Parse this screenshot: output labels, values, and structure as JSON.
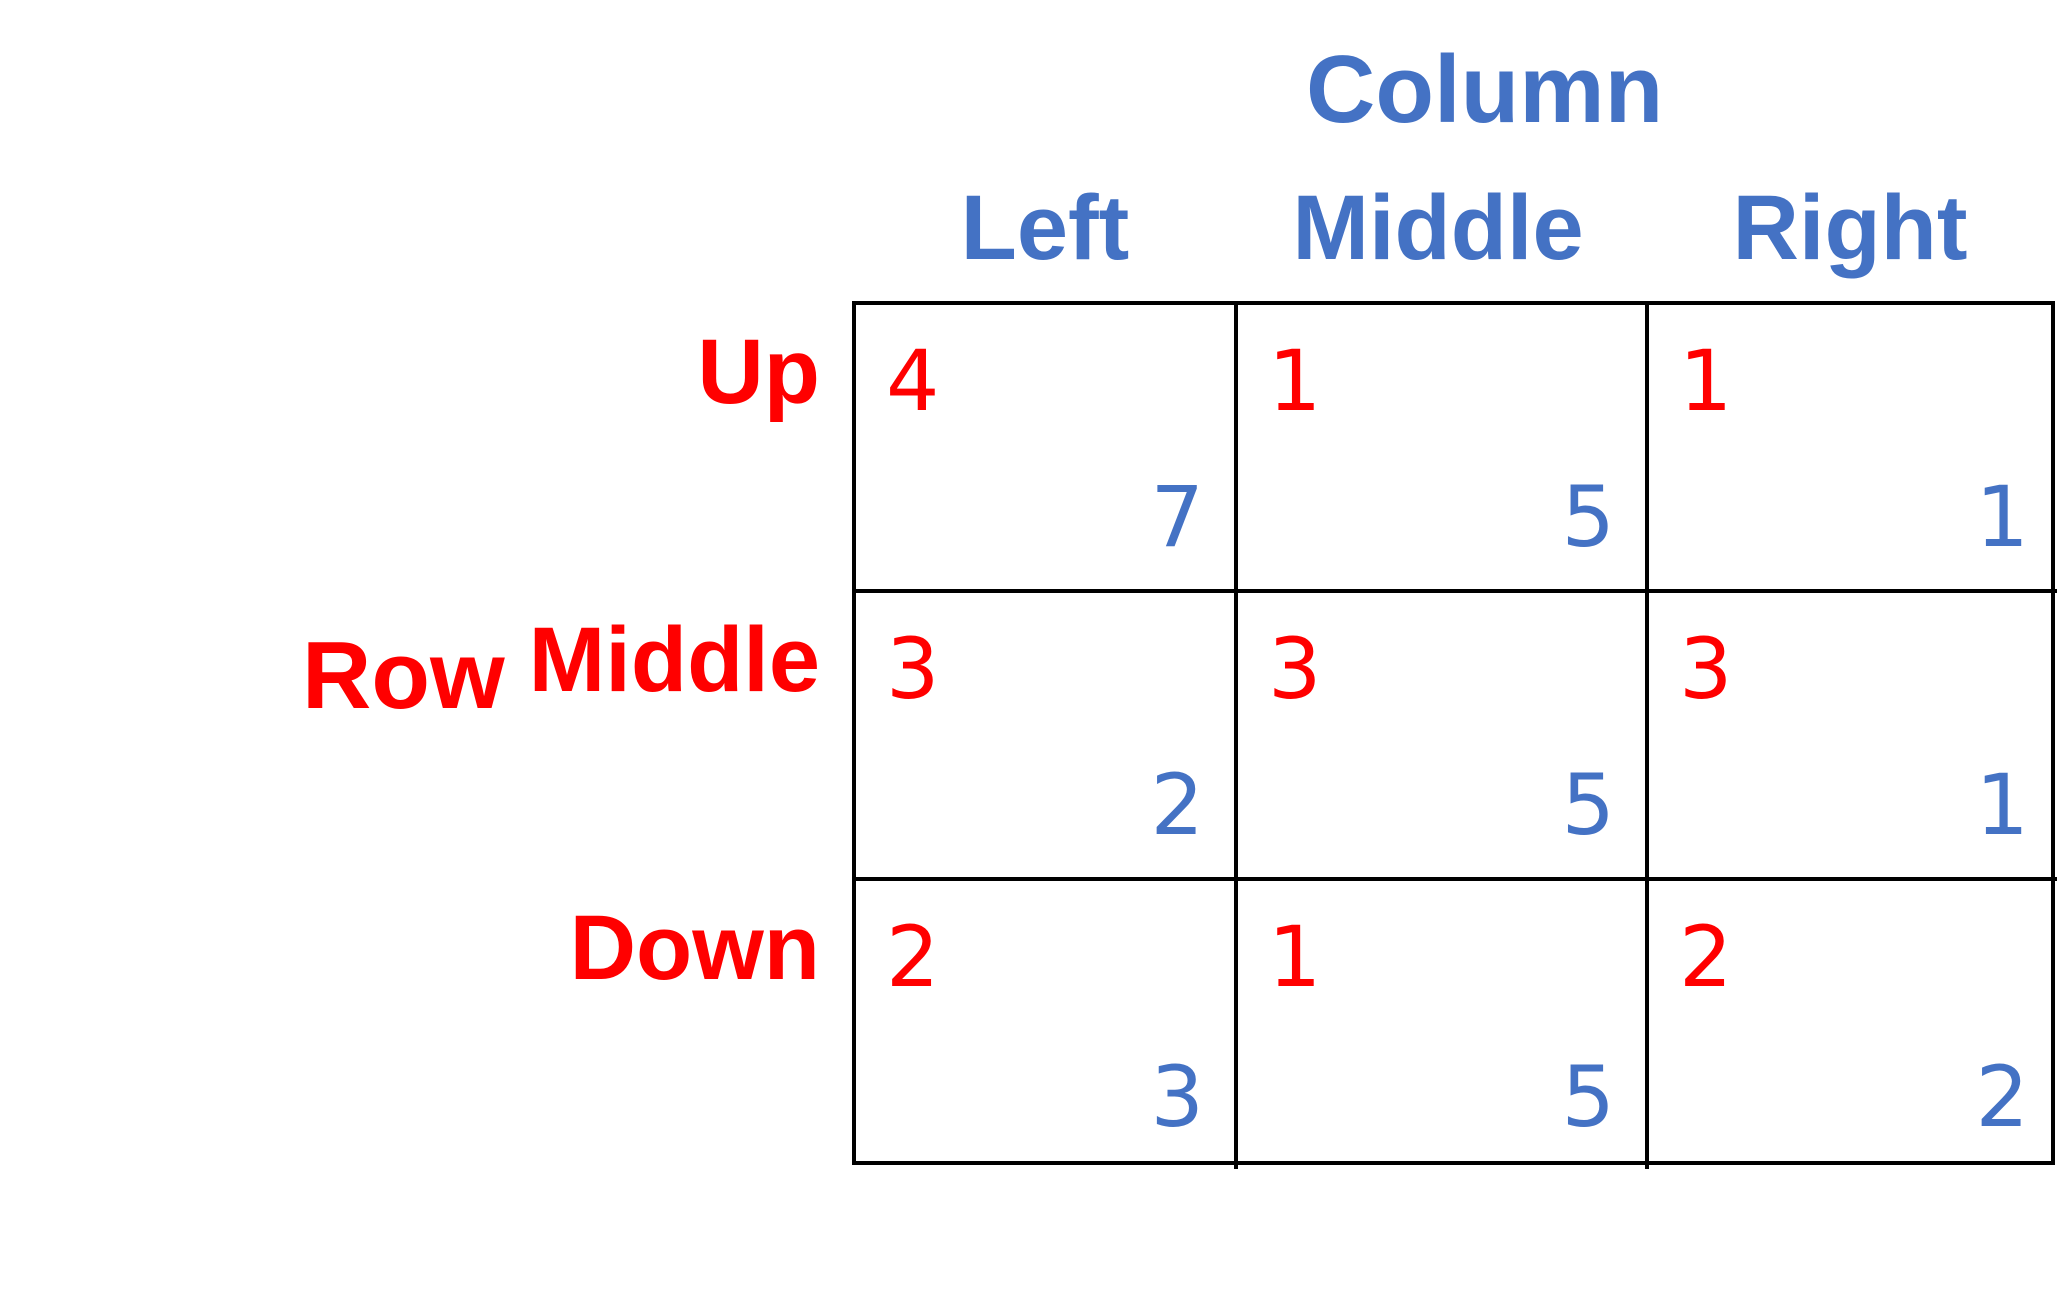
{
  "players": {
    "column": "Column",
    "row": "Row"
  },
  "column_strategies": [
    "Left",
    "Middle",
    "Right"
  ],
  "row_strategies": [
    "Up",
    "Middle",
    "Down"
  ],
  "payoffs": [
    [
      {
        "row": "4",
        "col": "7"
      },
      {
        "row": "1",
        "col": "5"
      },
      {
        "row": "1",
        "col": "1"
      }
    ],
    [
      {
        "row": "3",
        "col": "2"
      },
      {
        "row": "3",
        "col": "5"
      },
      {
        "row": "3",
        "col": "1"
      }
    ],
    [
      {
        "row": "2",
        "col": "3"
      },
      {
        "row": "1",
        "col": "5"
      },
      {
        "row": "2",
        "col": "2"
      }
    ]
  ],
  "colors": {
    "row_player": "#FF0000",
    "column_player": "#4472C4",
    "grid_lines": "#000000"
  }
}
